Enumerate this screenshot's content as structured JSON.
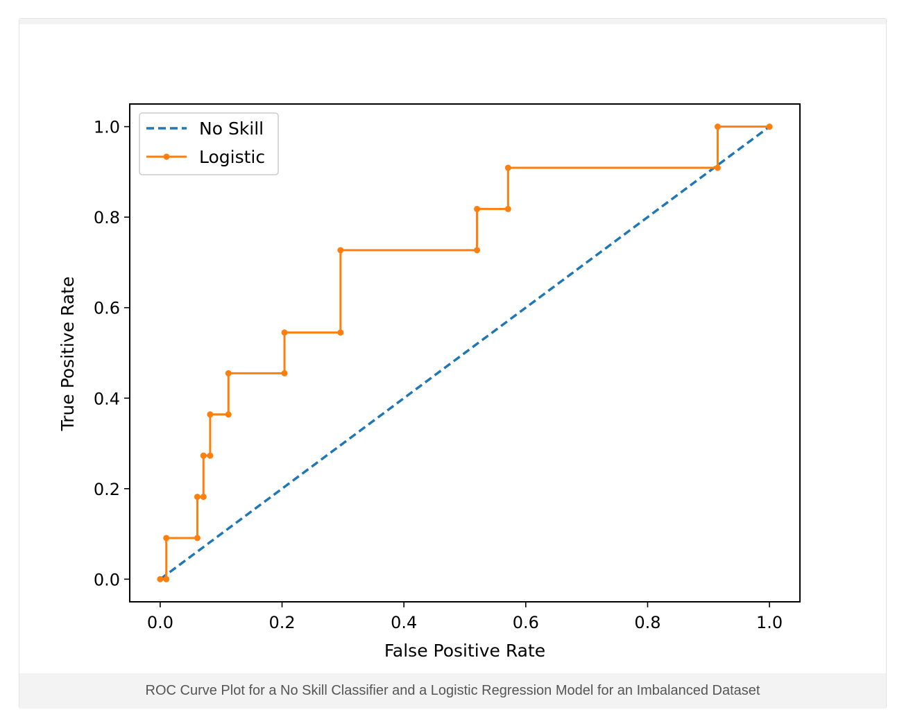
{
  "caption": "ROC Curve Plot for a No Skill Classifier and a Logistic Regression Model for an Imbalanced Dataset",
  "chart_data": {
    "type": "line",
    "title": "",
    "xlabel": "False Positive Rate",
    "ylabel": "True Positive Rate",
    "xlim": [
      -0.05,
      1.05
    ],
    "ylim": [
      -0.05,
      1.05
    ],
    "xticks": [
      0.0,
      0.2,
      0.4,
      0.6,
      0.8,
      1.0
    ],
    "yticks": [
      0.0,
      0.2,
      0.4,
      0.6,
      0.8,
      1.0
    ],
    "xtick_labels": [
      "0.0",
      "0.2",
      "0.4",
      "0.6",
      "0.8",
      "1.0"
    ],
    "ytick_labels": [
      "0.0",
      "0.2",
      "0.4",
      "0.6",
      "0.8",
      "1.0"
    ],
    "grid": false,
    "legend_position": "top-left",
    "series": [
      {
        "name": "No Skill",
        "style": "dashed",
        "color": "#1f77b4",
        "marker": "none",
        "x": [
          0.0,
          1.0
        ],
        "y": [
          0.0,
          1.0
        ]
      },
      {
        "name": "Logistic",
        "style": "solid",
        "color": "#ff7f0e",
        "marker": "circle",
        "x": [
          0.0,
          0.01,
          0.01,
          0.061,
          0.061,
          0.071,
          0.071,
          0.082,
          0.082,
          0.112,
          0.112,
          0.204,
          0.204,
          0.296,
          0.296,
          0.52,
          0.52,
          0.571,
          0.571,
          0.915,
          0.915,
          1.0
        ],
        "y": [
          0.0,
          0.0,
          0.091,
          0.091,
          0.182,
          0.182,
          0.273,
          0.273,
          0.364,
          0.364,
          0.455,
          0.455,
          0.545,
          0.545,
          0.727,
          0.727,
          0.818,
          0.818,
          0.909,
          0.909,
          1.0,
          1.0
        ]
      }
    ]
  }
}
